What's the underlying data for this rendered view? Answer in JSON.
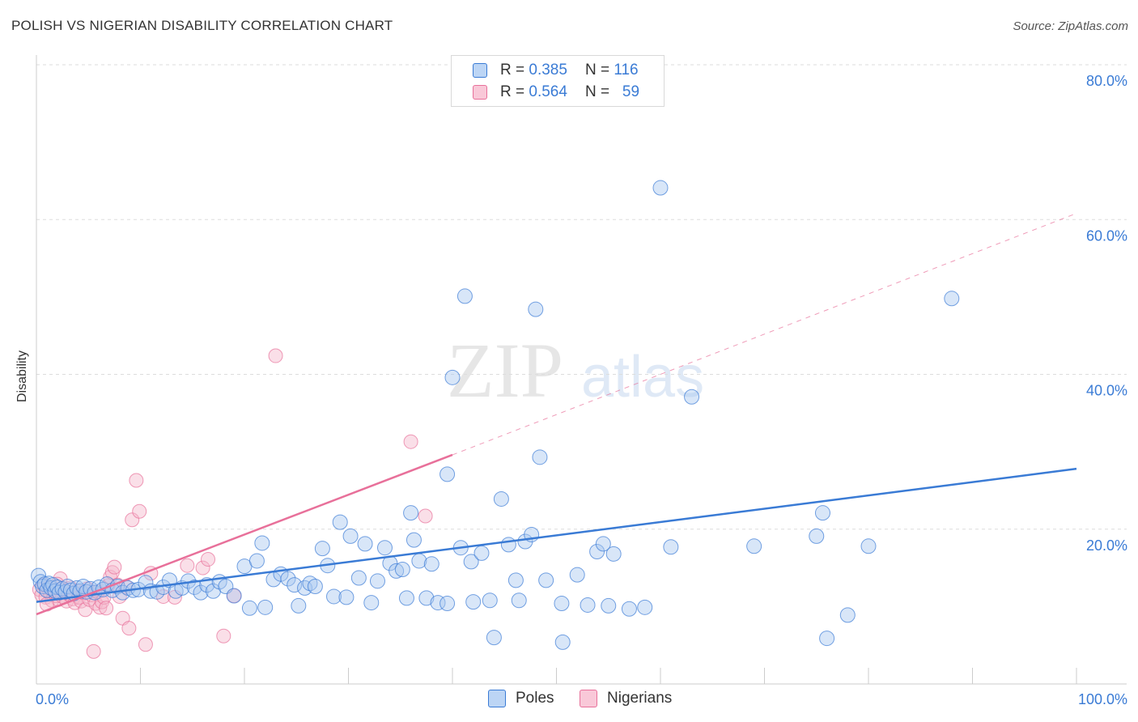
{
  "header": {
    "title": "POLISH VS NIGERIAN DISABILITY CORRELATION CHART",
    "source": "Source: ZipAtlas.com"
  },
  "watermark": {
    "zip": "ZIP",
    "atlas": "atlas"
  },
  "colors": {
    "poles": "#3a7bd5",
    "poles_fill": "#a9c8f0",
    "nigerians": "#e8709a",
    "nigerians_fill": "#f5b8cc",
    "grid": "#dddddd",
    "tick_label": "#3a7bd5"
  },
  "legend": {
    "rows": [
      {
        "r_label": "R =",
        "r_value": "0.385",
        "n_label": "N =",
        "n_value": "116"
      },
      {
        "r_label": "R =",
        "r_value": "0.564",
        "n_label": "N =",
        "n_value": "59"
      }
    ]
  },
  "bottom_legend": [
    "Poles",
    "Nigerians"
  ],
  "chart_data": {
    "type": "scatter",
    "xlabel": "",
    "ylabel": "Disability",
    "xlim": [
      0,
      100
    ],
    "ylim": [
      0,
      80
    ],
    "x_ticks": [
      "0.0%",
      "100.0%"
    ],
    "y_ticks": [
      {
        "value": 20,
        "label": "20.0%"
      },
      {
        "value": 40,
        "label": "40.0%"
      },
      {
        "value": 60,
        "label": "60.0%"
      },
      {
        "value": 80,
        "label": "80.0%"
      }
    ],
    "grid": true,
    "legend_position": "top-center",
    "series": [
      {
        "name": "Poles",
        "trend": {
          "x0": 0,
          "y0": 10.6,
          "x1": 100,
          "y1": 27.8
        },
        "points": [
          [
            0.2,
            14.0
          ],
          [
            0.4,
            13.2
          ],
          [
            0.6,
            12.6
          ],
          [
            0.8,
            12.9
          ],
          [
            1.0,
            12.1
          ],
          [
            1.2,
            13.0
          ],
          [
            1.4,
            12.4
          ],
          [
            1.6,
            12.8
          ],
          [
            1.8,
            12.0
          ],
          [
            2.0,
            12.5
          ],
          [
            2.2,
            11.8
          ],
          [
            2.5,
            12.3
          ],
          [
            2.8,
            11.9
          ],
          [
            3.0,
            12.6
          ],
          [
            3.3,
            12.1
          ],
          [
            3.6,
            11.7
          ],
          [
            3.9,
            12.4
          ],
          [
            4.2,
            12.0
          ],
          [
            4.5,
            12.6
          ],
          [
            4.8,
            11.9
          ],
          [
            5.2,
            12.3
          ],
          [
            5.6,
            11.8
          ],
          [
            6.0,
            12.5
          ],
          [
            6.4,
            12.2
          ],
          [
            6.8,
            12.9
          ],
          [
            7.3,
            12.1
          ],
          [
            7.8,
            12.6
          ],
          [
            8.3,
            11.8
          ],
          [
            8.8,
            12.4
          ],
          [
            9.3,
            12.1
          ],
          [
            9.8,
            12.2
          ],
          [
            10.5,
            13.1
          ],
          [
            11.0,
            12.0
          ],
          [
            11.6,
            11.9
          ],
          [
            12.2,
            12.5
          ],
          [
            12.8,
            13.4
          ],
          [
            13.4,
            12.0
          ],
          [
            14.0,
            12.4
          ],
          [
            14.6,
            13.3
          ],
          [
            15.2,
            12.5
          ],
          [
            15.8,
            11.8
          ],
          [
            16.4,
            12.8
          ],
          [
            17.0,
            12.0
          ],
          [
            17.6,
            13.2
          ],
          [
            18.2,
            12.6
          ],
          [
            19.0,
            11.4
          ],
          [
            20.0,
            15.2
          ],
          [
            20.5,
            9.8
          ],
          [
            21.2,
            15.9
          ],
          [
            21.7,
            18.2
          ],
          [
            22.0,
            9.9
          ],
          [
            22.8,
            13.5
          ],
          [
            23.5,
            14.2
          ],
          [
            24.2,
            13.6
          ],
          [
            24.8,
            12.8
          ],
          [
            25.2,
            10.1
          ],
          [
            25.8,
            12.4
          ],
          [
            26.3,
            13.0
          ],
          [
            26.8,
            12.6
          ],
          [
            27.5,
            17.5
          ],
          [
            28.0,
            15.3
          ],
          [
            28.6,
            11.3
          ],
          [
            29.2,
            20.9
          ],
          [
            29.8,
            11.2
          ],
          [
            30.2,
            19.1
          ],
          [
            31.0,
            13.7
          ],
          [
            31.6,
            18.1
          ],
          [
            32.2,
            10.5
          ],
          [
            32.8,
            13.3
          ],
          [
            33.5,
            17.6
          ],
          [
            34.0,
            15.6
          ],
          [
            34.6,
            14.6
          ],
          [
            35.2,
            14.8
          ],
          [
            35.6,
            11.1
          ],
          [
            36.0,
            22.1
          ],
          [
            36.3,
            18.6
          ],
          [
            36.8,
            15.9
          ],
          [
            37.5,
            11.1
          ],
          [
            38.0,
            15.5
          ],
          [
            38.6,
            10.5
          ],
          [
            39.5,
            10.4
          ],
          [
            39.5,
            27.1
          ],
          [
            40.0,
            39.6
          ],
          [
            40.8,
            17.6
          ],
          [
            41.2,
            50.1
          ],
          [
            41.8,
            15.8
          ],
          [
            42.0,
            10.6
          ],
          [
            42.8,
            16.9
          ],
          [
            43.6,
            10.8
          ],
          [
            44.0,
            6.0
          ],
          [
            44.7,
            23.9
          ],
          [
            45.4,
            18.0
          ],
          [
            46.1,
            13.4
          ],
          [
            46.4,
            10.8
          ],
          [
            47.0,
            18.4
          ],
          [
            47.6,
            19.3
          ],
          [
            48.0,
            48.4
          ],
          [
            48.4,
            29.3
          ],
          [
            49.0,
            13.4
          ],
          [
            50.5,
            10.4
          ],
          [
            50.6,
            5.4
          ],
          [
            52.0,
            14.1
          ],
          [
            53.0,
            10.2
          ],
          [
            53.9,
            17.1
          ],
          [
            54.5,
            18.1
          ],
          [
            55.0,
            10.1
          ],
          [
            55.5,
            16.8
          ],
          [
            57.0,
            9.7
          ],
          [
            58.5,
            9.9
          ],
          [
            60.0,
            64.1
          ],
          [
            61.0,
            17.7
          ],
          [
            63.0,
            37.1
          ],
          [
            69.0,
            17.8
          ],
          [
            75.0,
            19.1
          ],
          [
            75.6,
            22.1
          ],
          [
            76.0,
            5.9
          ],
          [
            78.0,
            8.9
          ],
          [
            80.0,
            17.8
          ],
          [
            88.0,
            49.8
          ]
        ]
      },
      {
        "name": "Nigerians",
        "trend": {
          "x0": 0,
          "y0": 9.0,
          "x1": 40,
          "y1": 29.6
        },
        "trend_dashed": {
          "x0": 40,
          "y0": 29.6,
          "x1": 100,
          "y1": 60.8
        },
        "points": [
          [
            0.3,
            12.2
          ],
          [
            0.5,
            11.5
          ],
          [
            0.7,
            12.8
          ],
          [
            0.9,
            11.2
          ],
          [
            1.1,
            12.4
          ],
          [
            1.3,
            11.8
          ],
          [
            1.5,
            10.8
          ],
          [
            1.7,
            12.1
          ],
          [
            1.9,
            11.4
          ],
          [
            2.1,
            10.9
          ],
          [
            2.3,
            13.6
          ],
          [
            2.5,
            11.3
          ],
          [
            2.7,
            12.2
          ],
          [
            2.9,
            10.7
          ],
          [
            3.1,
            11.6
          ],
          [
            3.3,
            12.4
          ],
          [
            3.5,
            11.0
          ],
          [
            3.7,
            10.5
          ],
          [
            3.9,
            12.0
          ],
          [
            4.1,
            11.2
          ],
          [
            4.3,
            10.7
          ],
          [
            4.5,
            11.8
          ],
          [
            4.7,
            9.6
          ],
          [
            4.9,
            12.3
          ],
          [
            5.1,
            10.9
          ],
          [
            5.3,
            11.5
          ],
          [
            5.5,
            4.2
          ],
          [
            5.7,
            10.4
          ],
          [
            5.9,
            11.9
          ],
          [
            6.1,
            9.9
          ],
          [
            6.3,
            10.6
          ],
          [
            6.5,
            11.2
          ],
          [
            6.7,
            9.8
          ],
          [
            6.9,
            12.7
          ],
          [
            7.1,
            13.8
          ],
          [
            7.3,
            14.4
          ],
          [
            7.5,
            15.1
          ],
          [
            7.8,
            12.8
          ],
          [
            8.0,
            11.3
          ],
          [
            8.3,
            8.5
          ],
          [
            8.6,
            12.6
          ],
          [
            8.9,
            7.2
          ],
          [
            9.2,
            21.2
          ],
          [
            9.6,
            26.3
          ],
          [
            9.9,
            22.3
          ],
          [
            10.5,
            5.1
          ],
          [
            11.0,
            14.3
          ],
          [
            12.2,
            11.3
          ],
          [
            13.3,
            11.2
          ],
          [
            14.5,
            15.3
          ],
          [
            16.0,
            15.0
          ],
          [
            16.5,
            16.1
          ],
          [
            18.0,
            6.2
          ],
          [
            19.0,
            11.4
          ],
          [
            23.0,
            42.4
          ],
          [
            36.0,
            31.3
          ],
          [
            37.4,
            21.7
          ],
          [
            1.0,
            10.3
          ],
          [
            2.0,
            12.9
          ]
        ]
      }
    ]
  }
}
